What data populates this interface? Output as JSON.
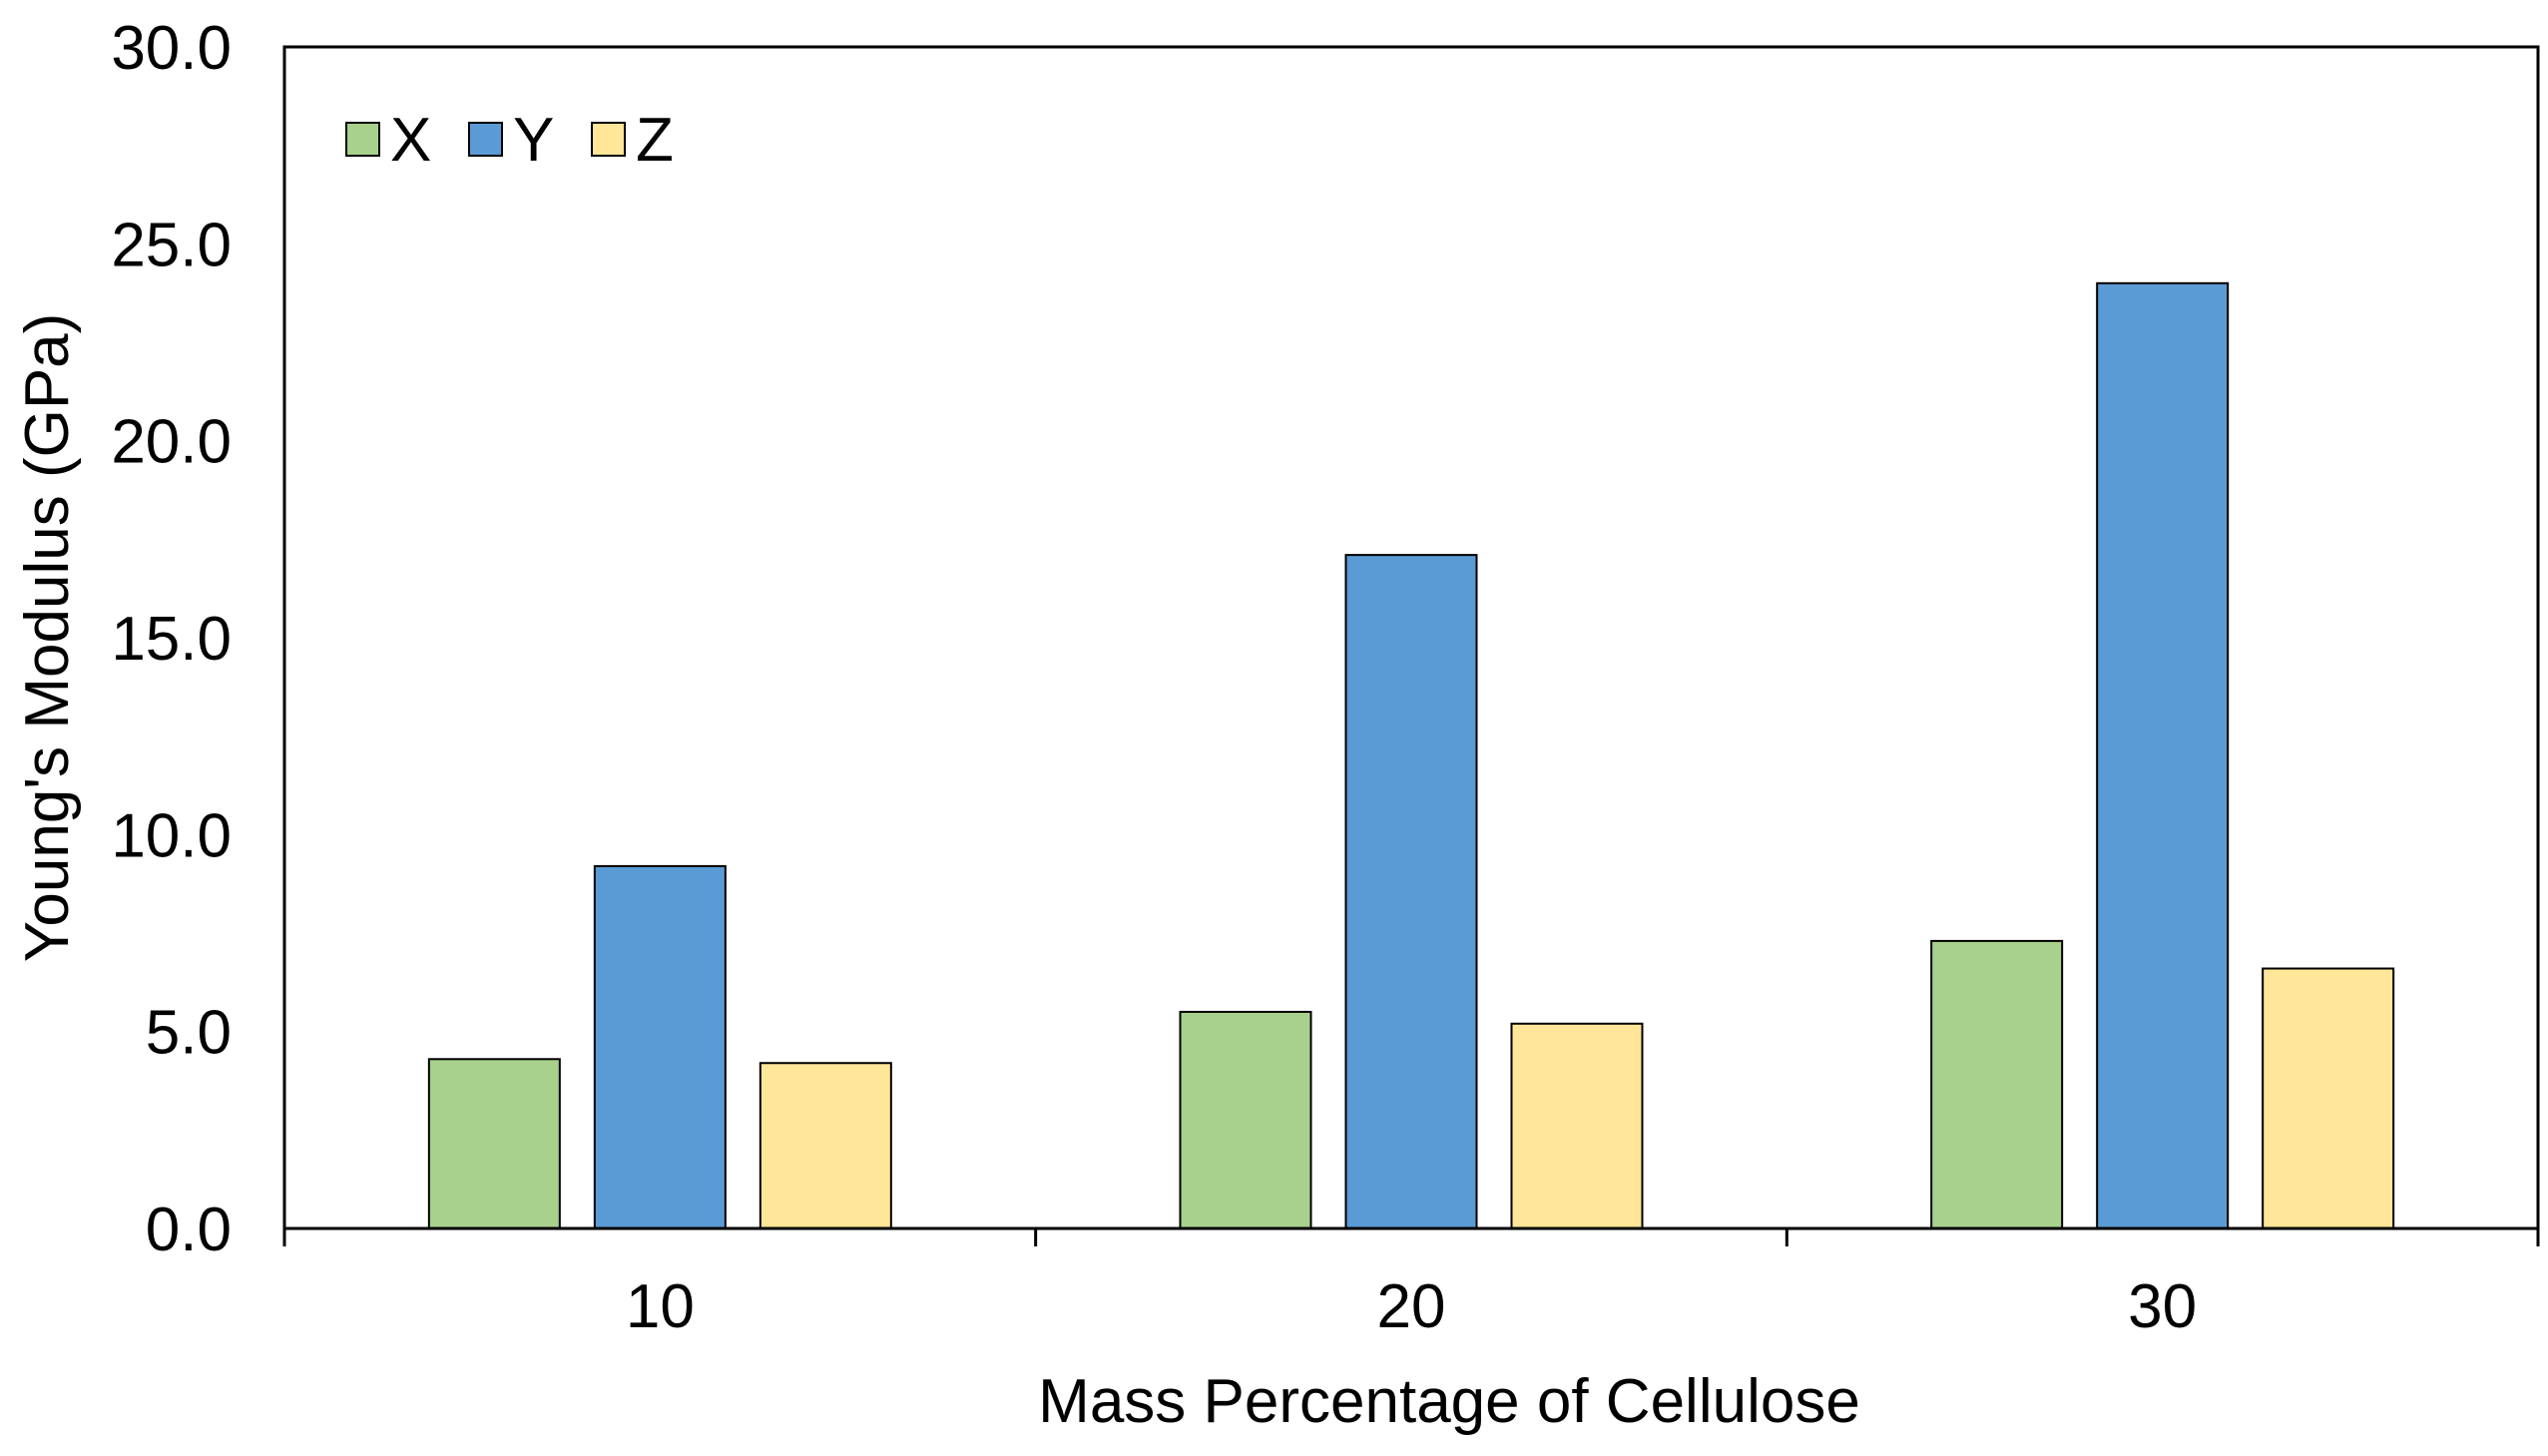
{
  "chart_data": {
    "type": "bar",
    "title": "",
    "xlabel": "Mass Percentage of Cellulose",
    "ylabel": "Young's Modulus (GPa)",
    "categories": [
      "10",
      "20",
      "30"
    ],
    "series": [
      {
        "name": "X",
        "color": "#a9d18e",
        "values": [
          4.3,
          5.5,
          7.3
        ]
      },
      {
        "name": "Y",
        "color": "#5b9bd5",
        "values": [
          9.2,
          17.1,
          24.0
        ]
      },
      {
        "name": "Z",
        "color": "#ffe699",
        "values": [
          4.2,
          5.2,
          6.6
        ]
      }
    ],
    "ylim": [
      0,
      30
    ],
    "yticks": [
      "0.0",
      "5.0",
      "10.0",
      "15.0",
      "20.0",
      "25.0",
      "30.0"
    ],
    "grid": false,
    "legend_position": "top-left"
  }
}
